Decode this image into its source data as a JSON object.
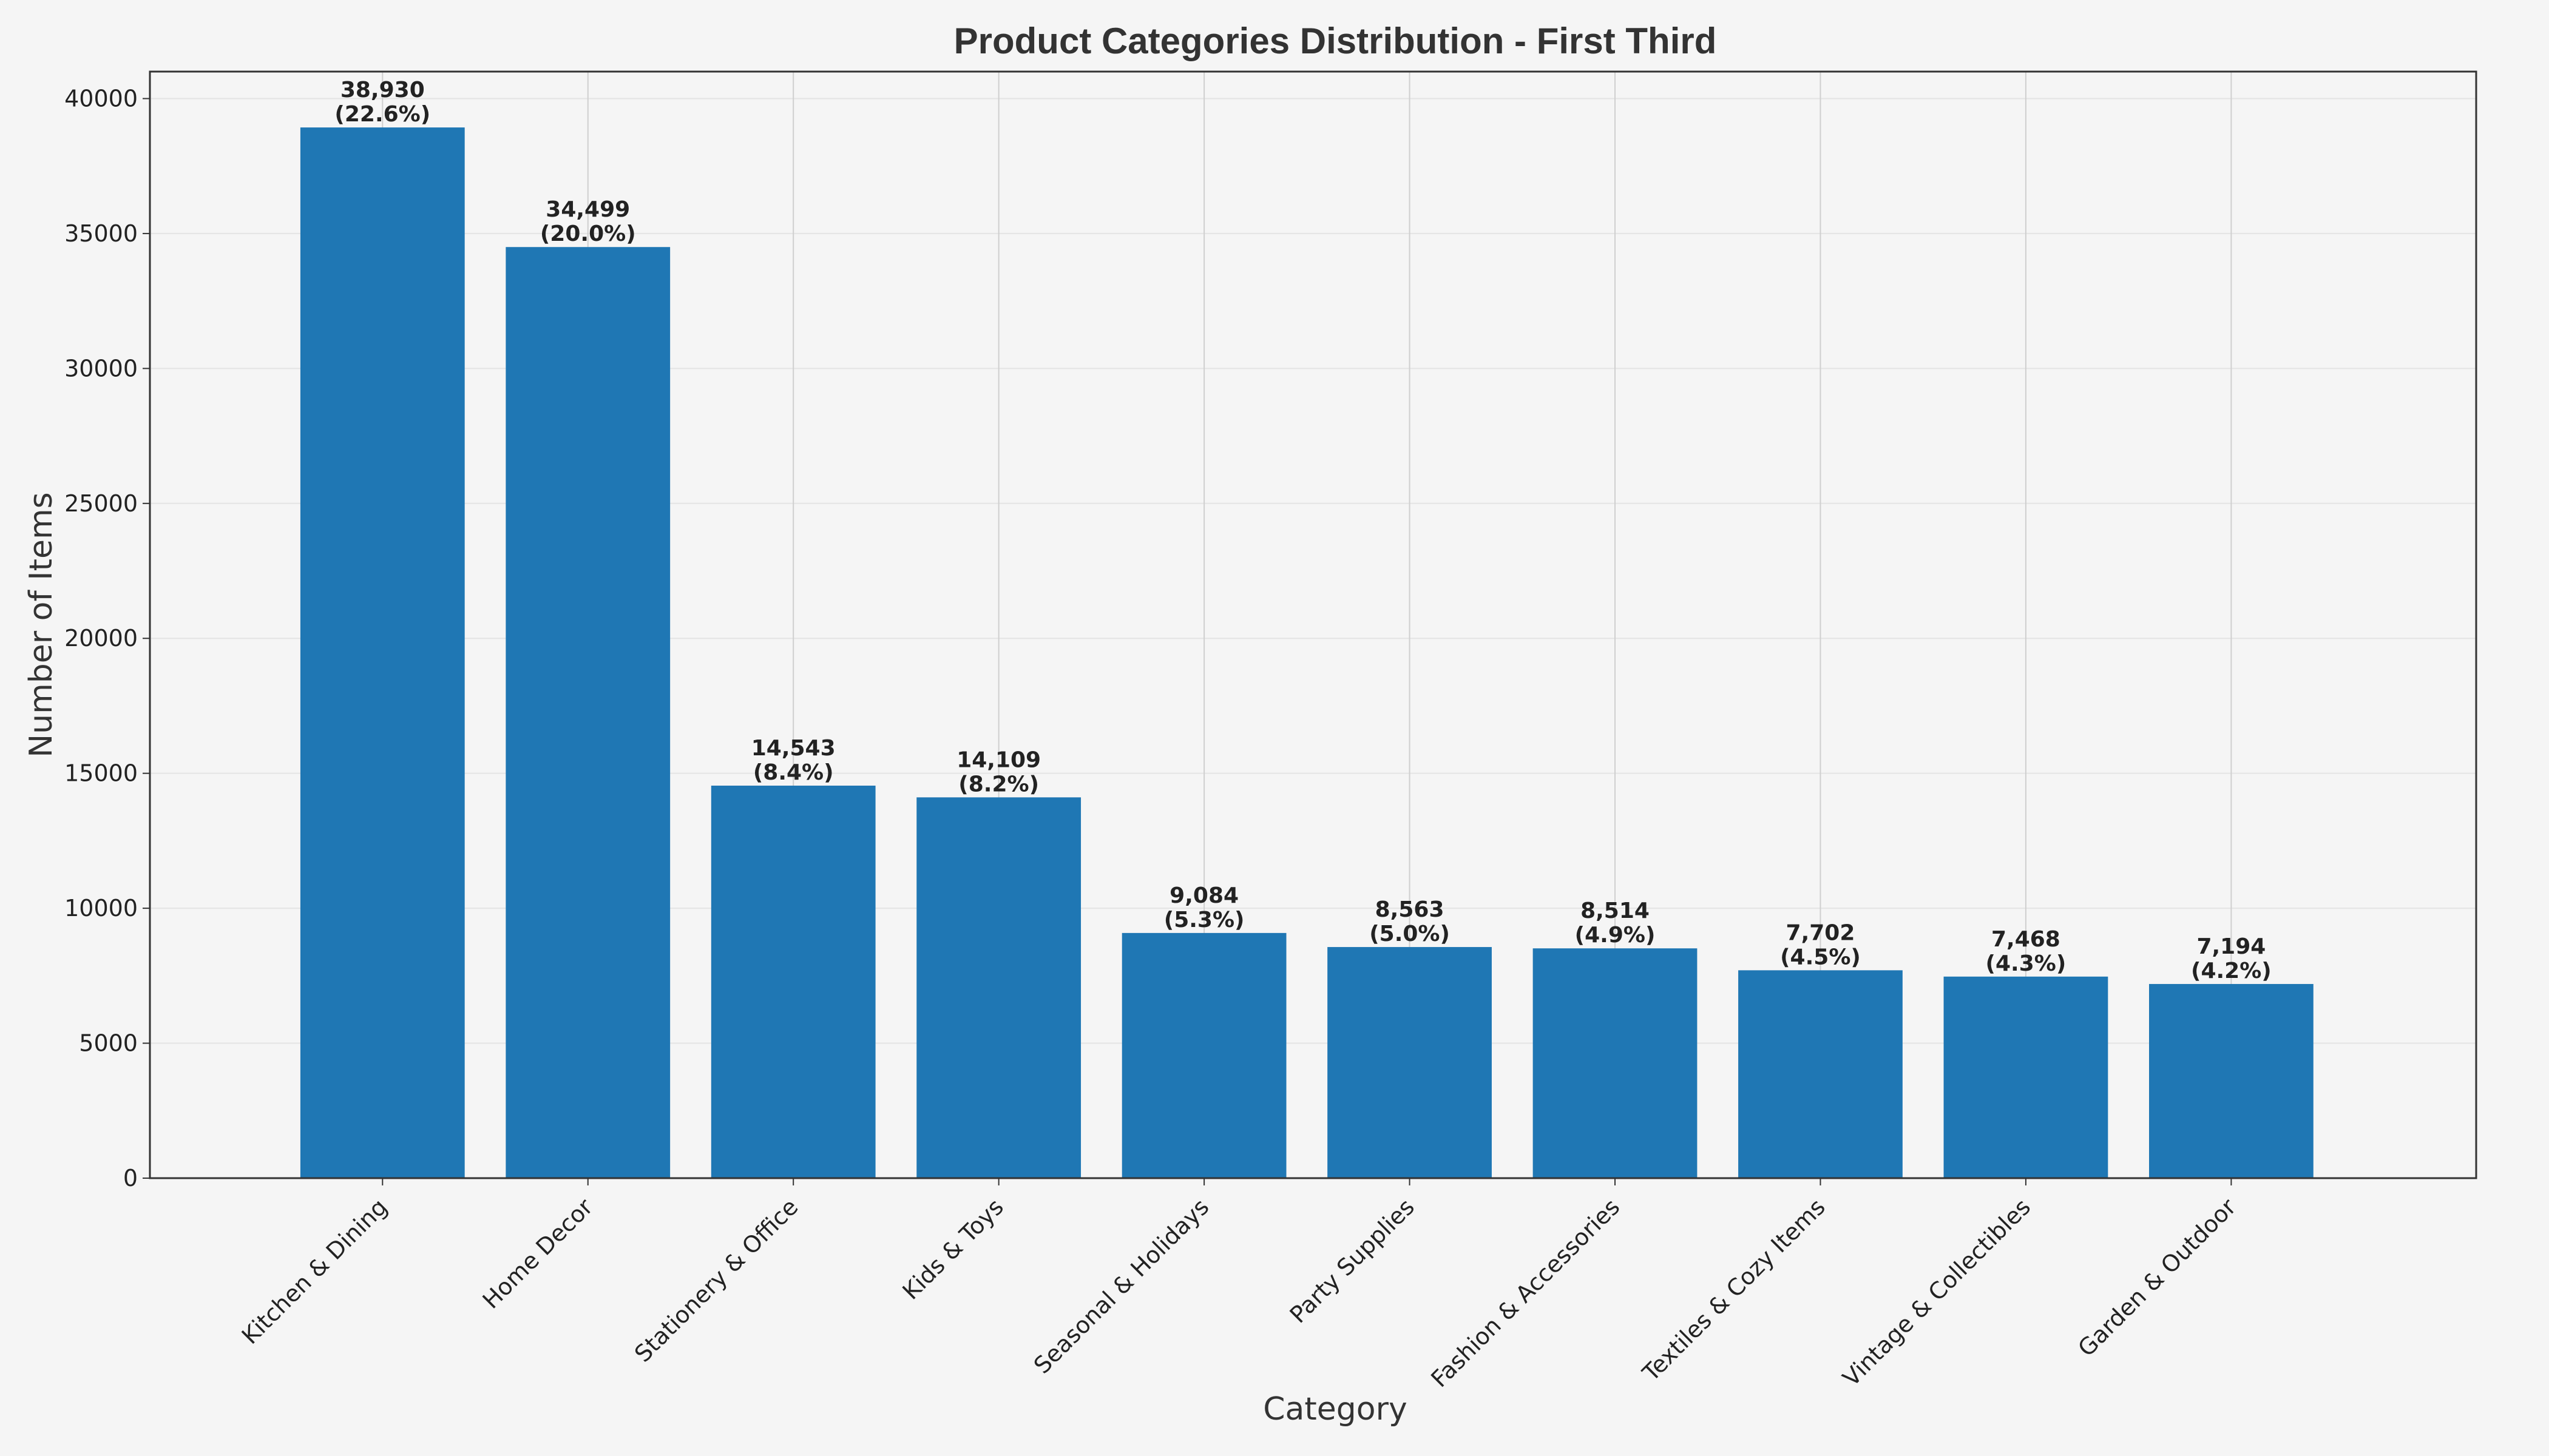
{
  "chart_data": {
    "type": "bar",
    "title": "Product Categories Distribution - First Third",
    "xlabel": "Category",
    "ylabel": "Number of Items",
    "categories": [
      "Kitchen & Dining",
      "Home Decor",
      "Stationery & Office",
      "Kids & Toys",
      "Seasonal & Holidays",
      "Party Supplies",
      "Fashion & Accessories",
      "Textiles & Cozy Items",
      "Vintage & Collectibles",
      "Garden & Outdoor"
    ],
    "values": [
      38930,
      34499,
      14543,
      14109,
      9084,
      8563,
      8514,
      7702,
      7468,
      7194
    ],
    "value_labels": [
      "38,930",
      "34,499",
      "14,543",
      "14,109",
      "9,084",
      "8,563",
      "8,514",
      "7,702",
      "7,468",
      "7,194"
    ],
    "percent_labels": [
      "(22.6%)",
      "(20.0%)",
      "(8.4%)",
      "(8.2%)",
      "(5.3%)",
      "(5.0%)",
      "(4.9%)",
      "(4.5%)",
      "(4.3%)",
      "(4.2%)"
    ],
    "yticks": [
      "0",
      "5000",
      "10000",
      "15000",
      "20000",
      "25000",
      "30000",
      "35000",
      "40000"
    ],
    "ylim": [
      0,
      41000
    ],
    "grid": true,
    "colors": {
      "bar": "#1f77b4",
      "background": "#f5f5f5",
      "axes": "#333333",
      "grid": "#dddddd",
      "text": "#333333"
    }
  }
}
